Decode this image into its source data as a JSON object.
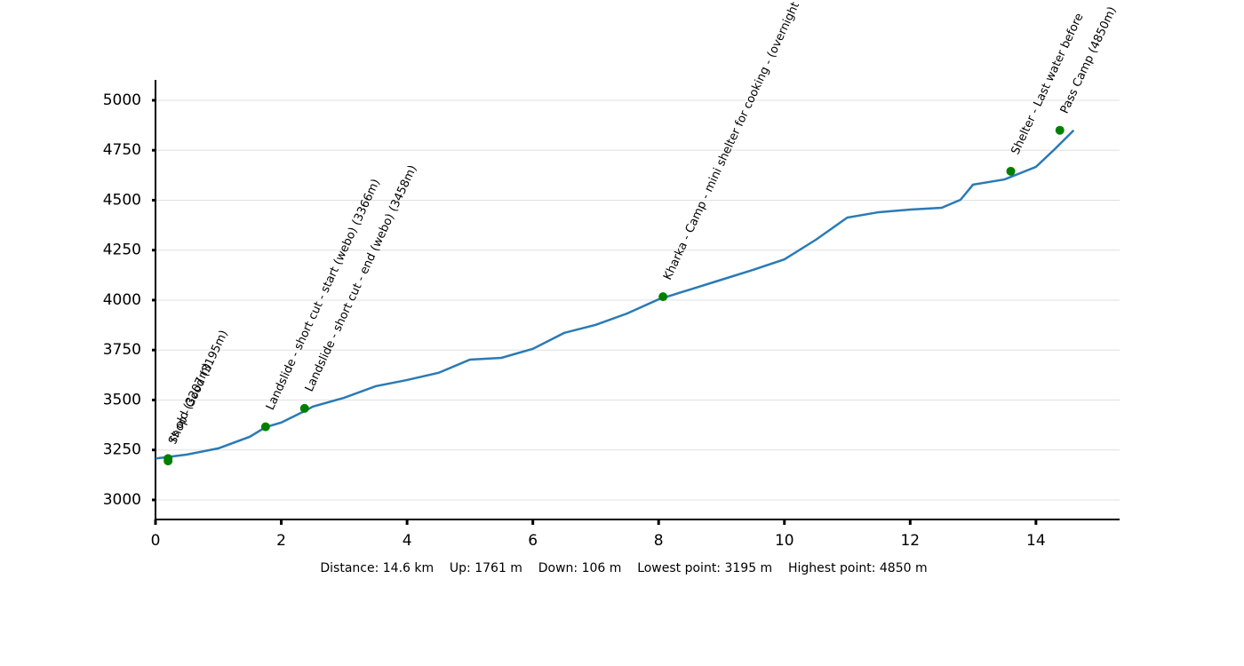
{
  "chart_data": {
    "type": "line",
    "x": [
      0,
      0.5,
      1.0,
      1.5,
      1.75,
      2.0,
      2.4,
      2.5,
      3.0,
      3.5,
      4.0,
      4.5,
      5.0,
      5.5,
      6.0,
      6.5,
      7.0,
      7.5,
      8.0,
      8.5,
      9.0,
      9.5,
      10.0,
      10.5,
      11.0,
      11.5,
      12.0,
      12.5,
      12.8,
      13.0,
      13.5,
      14.0,
      14.3,
      14.6
    ],
    "values": [
      3207,
      3227,
      3258,
      3316,
      3364,
      3387,
      3449,
      3467,
      3511,
      3569,
      3600,
      3636,
      3702,
      3711,
      3756,
      3836,
      3876,
      3933,
      4004,
      4053,
      4102,
      4151,
      4204,
      4302,
      4413,
      4440,
      4453,
      4462,
      4502,
      4578,
      4604,
      4667,
      4756,
      4850
    ],
    "color": "#2a7ab5",
    "waypoints": {
      "color": "#008000",
      "x": [
        0.2,
        0.2,
        1.75,
        2.37,
        8.07,
        13.6,
        14.38
      ],
      "values": [
        3195,
        3207,
        3366,
        3458,
        4017,
        4645,
        4850
      ],
      "labels": [
        "Shop - Good (3195m)",
        "rs old (3207m)",
        "Landslide - short cut - start (webo) (3366m)",
        "Landslide - short cut - end (webo) (3458m)",
        "Kharka - Camp - mini shelter for cooking - (overnight",
        "Shelter - Last water before",
        "Pass Camp (4850m)"
      ]
    },
    "xlim": [
      0,
      15.33
    ],
    "ylim": [
      2902,
      5102
    ],
    "xticks": [
      0,
      2,
      4,
      6,
      8,
      10,
      12,
      14
    ],
    "yticks": [
      3000,
      3250,
      3500,
      3750,
      4000,
      4250,
      4500,
      4750,
      5000
    ],
    "grid": true,
    "footer": "Distance: 14.6 km    Up: 1761 m    Down: 106 m    Lowest point: 3195 m    Highest point: 4850 m"
  }
}
